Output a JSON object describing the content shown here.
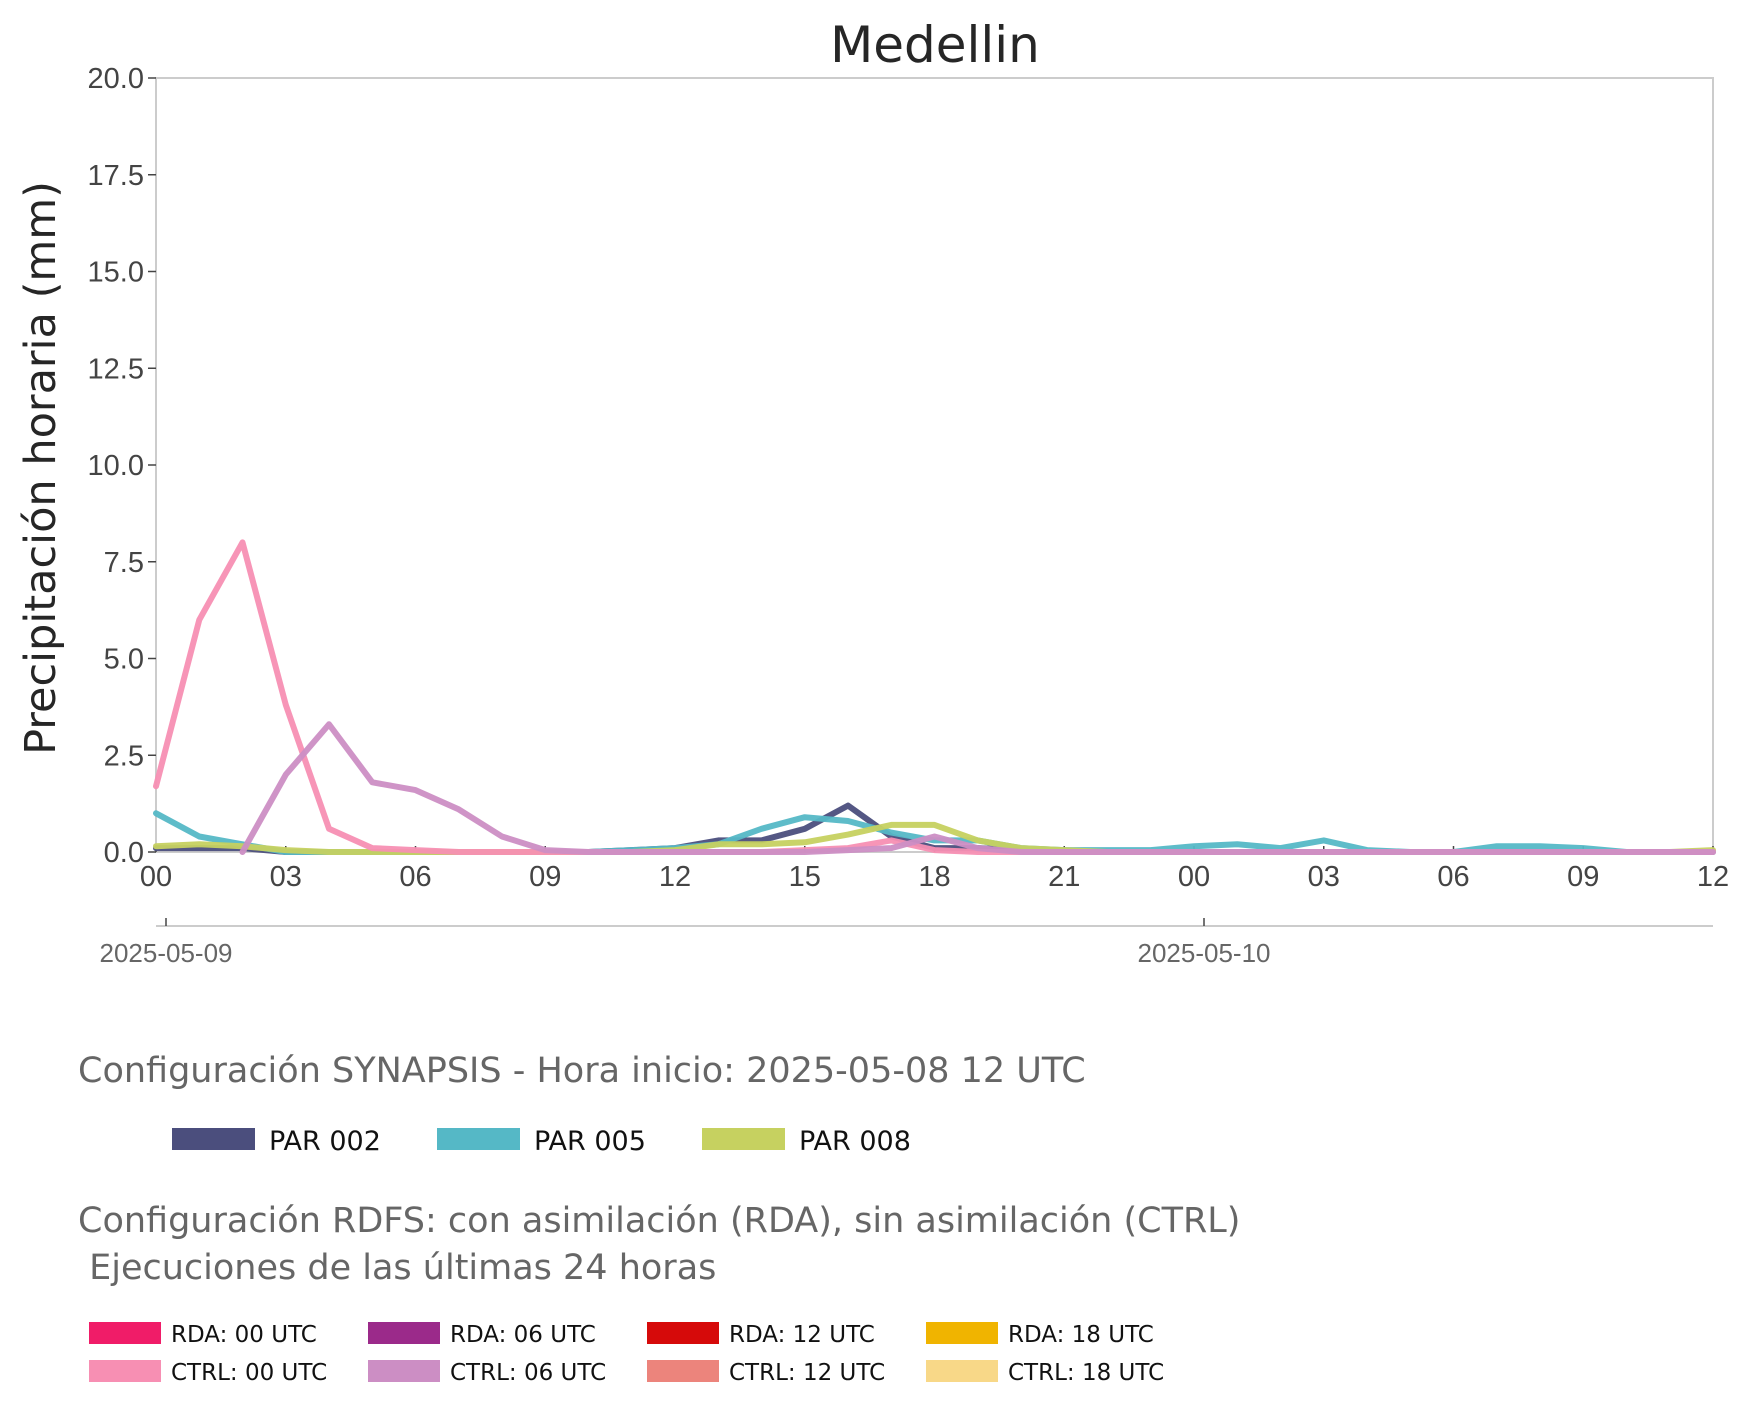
{
  "chart_data": {
    "type": "line",
    "title": "Medellin",
    "ylabel": "Precipitación horaria (mm)",
    "xlabel": "",
    "ylim": [
      0,
      20
    ],
    "yticks": [
      "0.0",
      "2.5",
      "5.0",
      "7.5",
      "10.0",
      "12.5",
      "15.0",
      "17.5",
      "20.0"
    ],
    "xticks": [
      "00",
      "03",
      "06",
      "09",
      "12",
      "15",
      "18",
      "21",
      "00",
      "03",
      "06",
      "09",
      "12"
    ],
    "date_labels": [
      {
        "hour": 0,
        "label": "2025-05-09"
      },
      {
        "hour": 24,
        "label": "2025-05-10"
      }
    ],
    "x_range_hours": [
      0,
      36
    ],
    "x_start": "2025-05-09 00",
    "grid": false,
    "series": [
      {
        "name": "PAR 002",
        "color": "#4b4e7d",
        "values": [
          0.1,
          0.1,
          0.1,
          0,
          0,
          0,
          0,
          0,
          0,
          0,
          0,
          0.05,
          0.1,
          0.3,
          0.3,
          0.6,
          1.2,
          0.4,
          0.1,
          0.1,
          0.05,
          0,
          0,
          0,
          0,
          0,
          0,
          0,
          0,
          0,
          0,
          0,
          0,
          0,
          0,
          0,
          0
        ]
      },
      {
        "name": "PAR 005",
        "color": "#55b8c6",
        "values": [
          1.0,
          0.4,
          0.2,
          0,
          0,
          0,
          0,
          0,
          0,
          0,
          0,
          0.05,
          0.1,
          0.2,
          0.6,
          0.9,
          0.8,
          0.5,
          0.3,
          0.3,
          0.1,
          0.05,
          0.05,
          0.05,
          0.15,
          0.2,
          0.1,
          0.3,
          0.05,
          0,
          0,
          0.15,
          0.15,
          0.1,
          0,
          0,
          0
        ]
      },
      {
        "name": "PAR 008",
        "color": "#c6d160",
        "values": [
          0.15,
          0.2,
          0.15,
          0.05,
          0,
          0,
          0,
          0,
          0,
          0,
          0,
          0,
          0.05,
          0.2,
          0.2,
          0.25,
          0.45,
          0.7,
          0.7,
          0.3,
          0.1,
          0.05,
          0,
          0,
          0,
          0,
          0,
          0,
          0,
          0,
          0,
          0,
          0,
          0,
          0,
          0,
          0.05
        ]
      },
      {
        "name": "CTRL: 00 UTC",
        "color": "#f78fb3",
        "values": [
          1.7,
          6.0,
          8.0,
          3.8,
          0.6,
          0.1,
          0.05,
          0,
          0,
          0,
          0,
          0,
          0,
          0,
          0,
          0.05,
          0.1,
          0.3,
          0.05,
          0,
          0,
          0,
          0,
          0,
          0,
          0,
          0,
          0,
          0,
          0,
          0,
          0,
          0,
          0,
          0,
          0,
          0
        ]
      },
      {
        "name": "CTRL: 06 UTC",
        "color": "#cc8ec4",
        "x_start_hour": 2,
        "values": [
          0,
          2.0,
          3.3,
          1.8,
          1.6,
          1.1,
          0.4,
          0.05,
          0,
          0,
          0,
          0,
          0,
          0,
          0.05,
          0.1,
          0.4,
          0.1,
          0,
          0,
          0,
          0,
          0,
          0,
          0,
          0,
          0,
          0,
          0,
          0,
          0,
          0,
          0,
          0,
          0
        ]
      }
    ]
  },
  "legend_synapsis": {
    "title": "Configuración SYNAPSIS - Hora inicio: 2025-05-08 12 UTC",
    "items": [
      {
        "label": "PAR 002",
        "color": "#4b4e7d"
      },
      {
        "label": "PAR 005",
        "color": "#55b8c6"
      },
      {
        "label": "PAR 008",
        "color": "#c6d160"
      }
    ]
  },
  "legend_rdfs": {
    "title_line1": "Configuración RDFS: con asimilación (RDA), sin asimilación (CTRL)",
    "title_line2": " Ejecuciones de las últimas 24 horas",
    "items": [
      {
        "label": "RDA: 00 UTC",
        "color": "#f01c68"
      },
      {
        "label": "CTRL: 00 UTC",
        "color": "#f78fb3"
      },
      {
        "label": "RDA: 06 UTC",
        "color": "#9b2a8a"
      },
      {
        "label": "CTRL: 06 UTC",
        "color": "#cc8ec4"
      },
      {
        "label": "RDA: 12 UTC",
        "color": "#d60a0a"
      },
      {
        "label": "CTRL: 12 UTC",
        "color": "#ec847c"
      },
      {
        "label": "RDA: 18 UTC",
        "color": "#f0b400"
      },
      {
        "label": "CTRL: 18 UTC",
        "color": "#f8d888"
      }
    ]
  }
}
